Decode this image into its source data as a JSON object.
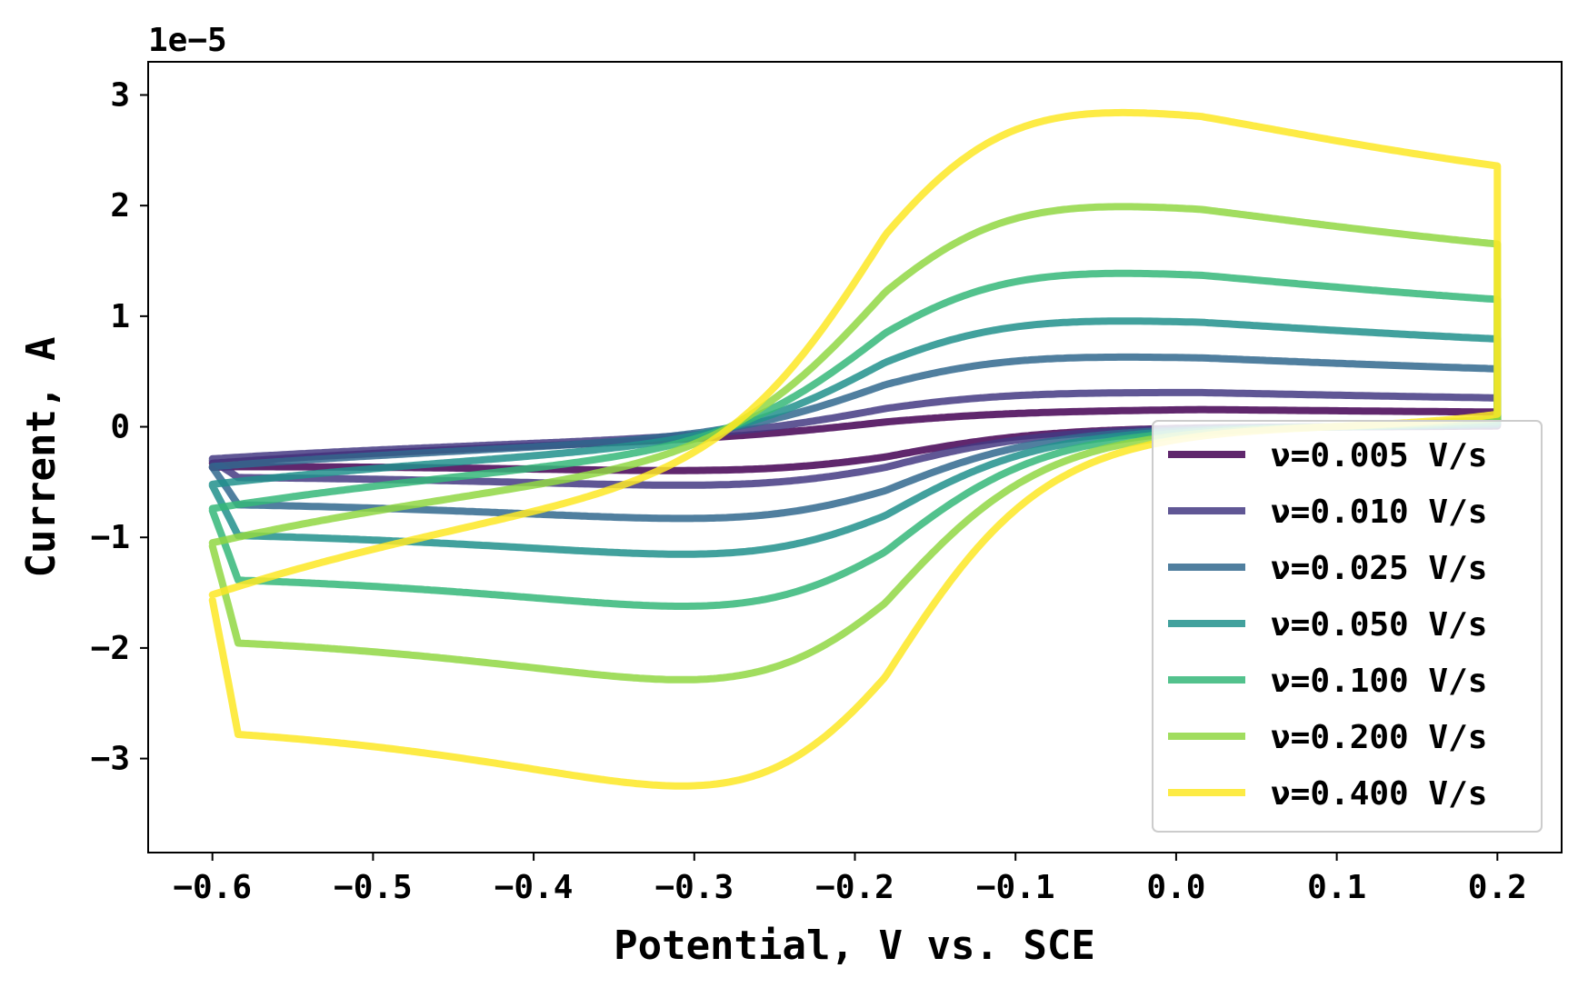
{
  "chart_data": {
    "type": "line",
    "title": "",
    "xlabel": "Potential, V vs. SCE",
    "ylabel": "Current, A",
    "y_offset_text": "1e−5",
    "y_scale": 1e-05,
    "xlim": [
      -0.64,
      0.24
    ],
    "ylim": [
      -3.85,
      3.3
    ],
    "x_ticks": [
      -0.6,
      -0.5,
      -0.4,
      -0.3,
      -0.2,
      -0.1,
      0.0,
      0.1,
      0.2
    ],
    "x_tick_labels": [
      "−0.6",
      "−0.5",
      "−0.4",
      "−0.3",
      "−0.2",
      "−0.1",
      "0.0",
      "0.1",
      "0.2"
    ],
    "y_ticks": [
      -3,
      -2,
      -1,
      0,
      1,
      2,
      3
    ],
    "y_tick_labels": [
      "−3",
      "−2",
      "−1",
      "0",
      "1",
      "2",
      "3"
    ],
    "grid": false,
    "legend_position": "lower-right",
    "model": {
      "E0": -0.181,
      "ox_peak_E": -0.146,
      "red_peak_E": -0.216,
      "E_start": -0.6,
      "E_vertex": 0.2
    },
    "series": [
      {
        "name": "ν=0.005 V/s",
        "color": "#440154",
        "ipa": 0.17,
        "ipc": -0.42,
        "start": -0.33,
        "tail_ox": 0.06
      },
      {
        "name": "ν=0.010 V/s",
        "color": "#443983",
        "ipa": 0.33,
        "ipc": -0.57,
        "start": -0.29,
        "tail_ox": 0.1
      },
      {
        "name": "ν=0.025 V/s",
        "color": "#31688e",
        "ipa": 0.66,
        "ipc": -0.9,
        "start": -0.36,
        "tail_ox": 0.16
      },
      {
        "name": "ν=0.050 V/s",
        "color": "#21918c",
        "ipa": 1.0,
        "ipc": -1.25,
        "start": -0.52,
        "tail_ox": 0.24
      },
      {
        "name": "ν=0.100 V/s",
        "color": "#35b779",
        "ipa": 1.45,
        "ipc": -1.76,
        "start": -0.74,
        "tail_ox": 0.37
      },
      {
        "name": "ν=0.200 V/s",
        "color": "#90d743",
        "ipa": 2.08,
        "ipc": -2.48,
        "start": -1.05,
        "tail_ox": 0.58
      },
      {
        "name": "ν=0.400 V/s",
        "color": "#fde725",
        "ipa": 2.97,
        "ipc": -3.52,
        "start": -1.52,
        "tail_ox": 0.86
      }
    ]
  }
}
